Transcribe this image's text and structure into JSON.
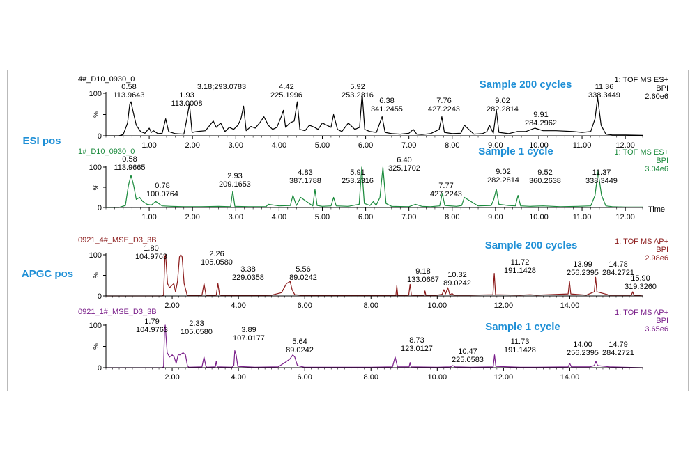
{
  "colors": {
    "esi200": "#000000",
    "esi1": "#1a8a3c",
    "apgc200": "#8b1a1a",
    "apgc1": "#7a1f8a",
    "blue": "#1e8fd6"
  },
  "group_labels": [
    "ESI pos",
    "APGC pos"
  ],
  "panels": [
    {
      "id": "esi200",
      "color_key": "esi200",
      "sample": "D10_0930_0",
      "header": "4#_D10_0930_0",
      "label": "Sample 200 cycles",
      "info1": "1: TOF MS ES+",
      "info2": "BPI",
      "info3": "2.60e6",
      "show_axis": true,
      "xlabel": "",
      "xticks": [
        "1.00",
        "2.00",
        "3.00",
        "4.00",
        "5.00",
        "6.00",
        "7.00",
        "8.00",
        "9.00",
        "10.00",
        "11.00",
        "12.00"
      ],
      "peaks": [
        {
          "rt": "0.58",
          "mz": "113.9643"
        },
        {
          "rt": "1.93",
          "mz": "113.0008"
        },
        {
          "rt": "3.18;293.0783",
          "mz": ""
        },
        {
          "rt": "4.42",
          "mz": "225.1996"
        },
        {
          "rt": "5.92",
          "mz": "253.2316"
        },
        {
          "rt": "6.38",
          "mz": "341.2455"
        },
        {
          "rt": "7.76",
          "mz": "427.2243"
        },
        {
          "rt": "9.02",
          "mz": "282.2814"
        },
        {
          "rt": "9.91",
          "mz": "284.2962"
        },
        {
          "rt": "11.36",
          "mz": "338.3449"
        }
      ]
    },
    {
      "id": "esi1",
      "color_key": "esi1",
      "sample": "D10_0930_0",
      "header": "1#_D10_0930_0",
      "label": "Sample 1 cycle",
      "info1": "1: TOF MS ES+",
      "info2": "BPI",
      "info3": "3.04e6",
      "show_axis": true,
      "xlabel": "Time",
      "xticks": [
        "1.00",
        "2.00",
        "3.00",
        "4.00",
        "5.00",
        "6.00",
        "7.00",
        "8.00",
        "9.00",
        "10.00",
        "11.00",
        "12.00"
      ],
      "peaks": [
        {
          "rt": "0.58",
          "mz": "113.9665"
        },
        {
          "rt": "0.78",
          "mz": "100.0764"
        },
        {
          "rt": "2.93",
          "mz": "209.1653"
        },
        {
          "rt": "4.83",
          "mz": "387.1788"
        },
        {
          "rt": "5.91",
          "mz": "253.2316"
        },
        {
          "rt": "6.40",
          "mz": "325.1702"
        },
        {
          "rt": "7.77",
          "mz": "427.2243"
        },
        {
          "rt": "9.02",
          "mz": "282.2814"
        },
        {
          "rt": "9.52",
          "mz": "360.2638"
        },
        {
          "rt": "11.37",
          "mz": "338.3449"
        }
      ]
    },
    {
      "id": "apgc200",
      "color_key": "apgc200",
      "sample": "MSE_D3_3B",
      "header": "0921_4#_MSE_D3_3B",
      "label": "Sample 200 cycles",
      "info1": "1: TOF MS AP+",
      "info2": "BPI",
      "info3": "2.98e6",
      "show_axis": true,
      "xlabel": "",
      "xticks": [
        "2.00",
        "4.00",
        "6.00",
        "8.00",
        "10.00",
        "12.00",
        "14.00"
      ],
      "peaks": [
        {
          "rt": "1.80",
          "mz": "104.9763"
        },
        {
          "rt": "2.26",
          "mz": "105.0580"
        },
        {
          "rt": "3.38",
          "mz": "229.0358"
        },
        {
          "rt": "5.56",
          "mz": "89.0242"
        },
        {
          "rt": "9.18",
          "mz": "133.0667"
        },
        {
          "rt": "10.32",
          "mz": "89.0242"
        },
        {
          "rt": "11.72",
          "mz": "191.1428"
        },
        {
          "rt": "13.99",
          "mz": "256.2395"
        },
        {
          "rt": "14.78",
          "mz": "284.2721"
        },
        {
          "rt": "15.90",
          "mz": "319.3260"
        }
      ]
    },
    {
      "id": "apgc1",
      "color_key": "apgc1",
      "sample": "MSE_D3_3B",
      "header": "0921_1#_MSE_D3_3B",
      "label": "Sample 1 cycle",
      "info1": "1: TOF MS AP+",
      "info2": "BPI",
      "info3": "3.65e6",
      "show_axis": true,
      "xlabel": "",
      "xticks": [
        "2.00",
        "4.00",
        "6.00",
        "8.00",
        "10.00",
        "12.00",
        "14.00"
      ],
      "peaks": [
        {
          "rt": "1.79",
          "mz": "104.9763"
        },
        {
          "rt": "2.33",
          "mz": "105.0580"
        },
        {
          "rt": "3.89",
          "mz": "107.0177"
        },
        {
          "rt": "5.64",
          "mz": "89.0242"
        },
        {
          "rt": "8.73",
          "mz": "123.0127"
        },
        {
          "rt": "10.47",
          "mz": "225.0583"
        },
        {
          "rt": "11.73",
          "mz": "191.1428"
        },
        {
          "rt": "14.00",
          "mz": "256.2395"
        },
        {
          "rt": "14.79",
          "mz": "284.2721"
        }
      ]
    }
  ],
  "chart_data": [
    {
      "type": "line",
      "title": "4#_D10_0930_0",
      "subtitle": "Sample 200 cycles",
      "xlabel": "",
      "ylabel": "%",
      "xlim": [
        0.0,
        12.4
      ],
      "ylim": [
        0,
        100
      ],
      "yticks": [
        0,
        50,
        100
      ],
      "grid": false,
      "series": [
        {
          "name": "4#_D10_0930_0",
          "x": [
            0.0,
            0.3,
            0.4,
            0.5,
            0.55,
            0.58,
            0.62,
            0.7,
            0.8,
            0.9,
            1.0,
            1.05,
            1.1,
            1.2,
            1.3,
            1.38,
            1.45,
            1.6,
            1.8,
            1.87,
            1.93,
            1.99,
            2.1,
            2.3,
            2.48,
            2.55,
            2.65,
            2.75,
            2.85,
            2.95,
            3.05,
            3.12,
            3.18,
            3.24,
            3.35,
            3.45,
            3.55,
            3.65,
            3.75,
            3.85,
            3.95,
            4.05,
            4.1,
            4.15,
            4.25,
            4.35,
            4.42,
            4.48,
            4.6,
            4.7,
            4.82,
            4.9,
            5.0,
            5.2,
            5.26,
            5.35,
            5.45,
            5.6,
            5.75,
            5.86,
            5.92,
            5.98,
            6.1,
            6.25,
            6.38,
            6.45,
            6.6,
            6.8,
            7.0,
            7.1,
            7.18,
            7.3,
            7.5,
            7.7,
            7.76,
            7.82,
            8.0,
            8.2,
            8.28,
            8.5,
            8.7,
            8.8,
            8.86,
            8.95,
            9.02,
            9.08,
            9.3,
            9.5,
            9.7,
            9.91,
            10.1,
            10.4,
            10.8,
            11.0,
            11.2,
            11.3,
            11.36,
            11.44,
            11.55,
            11.7,
            12.0,
            12.4
          ],
          "y": [
            0,
            0,
            3,
            30,
            75,
            80,
            60,
            25,
            10,
            6,
            18,
            8,
            12,
            5,
            6,
            40,
            10,
            5,
            4,
            40,
            75,
            8,
            10,
            12,
            35,
            20,
            30,
            10,
            20,
            15,
            25,
            40,
            70,
            12,
            22,
            18,
            30,
            45,
            25,
            15,
            20,
            45,
            60,
            20,
            30,
            35,
            80,
            15,
            12,
            25,
            20,
            15,
            30,
            20,
            50,
            15,
            10,
            30,
            15,
            20,
            100,
            15,
            10,
            8,
            45,
            8,
            5,
            4,
            6,
            15,
            4,
            3,
            5,
            15,
            45,
            8,
            5,
            6,
            25,
            4,
            5,
            10,
            25,
            6,
            60,
            8,
            5,
            10,
            10,
            18,
            12,
            12,
            10,
            8,
            10,
            40,
            90,
            25,
            4,
            2,
            2,
            1
          ]
        }
      ],
      "annotations": [
        "0.58 113.9643",
        "1.93 113.0008",
        "3.18;293.0783",
        "4.42 225.1996",
        "5.92 253.2316",
        "6.38 341.2455",
        "7.76 427.2243",
        "9.02 282.2814",
        "9.91 284.2962",
        "11.36 338.3449"
      ]
    },
    {
      "type": "line",
      "title": "1#_D10_0930_0",
      "subtitle": "Sample 1 cycle",
      "xlabel": "Time",
      "ylabel": "%",
      "xlim": [
        0.0,
        12.4
      ],
      "ylim": [
        0,
        100
      ],
      "yticks": [
        0,
        50,
        100
      ],
      "grid": false,
      "series": [
        {
          "name": "1#_D10_0930_0",
          "x": [
            0.0,
            0.3,
            0.45,
            0.52,
            0.58,
            0.64,
            0.7,
            0.78,
            0.85,
            0.95,
            1.05,
            1.15,
            1.3,
            1.5,
            1.8,
            2.2,
            2.6,
            2.88,
            2.93,
            2.98,
            3.3,
            3.7,
            3.75,
            4.0,
            4.26,
            4.32,
            4.4,
            4.5,
            4.78,
            4.83,
            4.88,
            5.0,
            5.2,
            5.26,
            5.32,
            5.6,
            5.85,
            5.91,
            5.97,
            6.1,
            6.18,
            6.24,
            6.33,
            6.4,
            6.47,
            6.6,
            7.0,
            7.15,
            7.3,
            7.5,
            7.71,
            7.77,
            7.83,
            8.1,
            8.22,
            8.28,
            8.6,
            8.9,
            8.96,
            9.02,
            9.08,
            9.3,
            9.46,
            9.52,
            9.58,
            9.8,
            10.1,
            10.5,
            10.9,
            11.2,
            11.3,
            11.37,
            11.45,
            11.55,
            11.7,
            12.0,
            12.4
          ],
          "y": [
            0,
            0,
            5,
            55,
            80,
            55,
            20,
            25,
            15,
            8,
            6,
            15,
            4,
            3,
            2,
            2,
            3,
            2,
            40,
            3,
            2,
            2,
            8,
            4,
            5,
            30,
            5,
            25,
            4,
            45,
            5,
            3,
            4,
            25,
            4,
            3,
            8,
            100,
            10,
            5,
            15,
            5,
            25,
            100,
            10,
            3,
            2,
            8,
            3,
            2,
            4,
            35,
            5,
            3,
            5,
            25,
            4,
            5,
            20,
            45,
            8,
            5,
            4,
            30,
            4,
            3,
            4,
            2,
            3,
            4,
            30,
            90,
            30,
            4,
            2,
            1,
            1
          ]
        }
      ],
      "annotations": [
        "0.58 113.9665",
        "0.78 100.0764",
        "2.93 209.1653",
        "4.83 387.1788",
        "5.91 253.2316",
        "6.40 325.1702",
        "7.77 427.2243",
        "9.02 282.2814",
        "9.52 360.2638",
        "11.37 338.3449"
      ]
    },
    {
      "type": "line",
      "title": "0921_4#_MSE_D3_3B",
      "subtitle": "Sample 200 cycles",
      "xlabel": "",
      "ylabel": "%",
      "xlim": [
        0.0,
        16.2
      ],
      "ylim": [
        0,
        100
      ],
      "yticks": [
        0,
        50,
        100
      ],
      "grid": false,
      "series": [
        {
          "name": "0921_4#_MSE_D3_3B",
          "x": [
            0.0,
            1.7,
            1.74,
            1.78,
            1.8,
            1.86,
            1.92,
            1.98,
            2.05,
            2.1,
            2.16,
            2.22,
            2.26,
            2.3,
            2.36,
            2.45,
            2.5,
            2.9,
            2.96,
            3.02,
            3.05,
            3.33,
            3.38,
            3.43,
            3.5,
            4.0,
            5.0,
            5.3,
            5.45,
            5.56,
            5.62,
            5.7,
            6.0,
            7.0,
            8.0,
            8.75,
            8.78,
            8.81,
            9.14,
            9.18,
            9.22,
            9.6,
            9.63,
            9.66,
            10.0,
            10.15,
            10.2,
            10.25,
            10.32,
            10.38,
            10.45,
            10.5,
            11.0,
            11.68,
            11.72,
            11.76,
            12.5,
            12.8,
            13.0,
            13.95,
            13.99,
            14.03,
            14.5,
            14.74,
            14.78,
            14.82,
            15.2,
            15.86,
            15.9,
            15.94,
            16.2
          ],
          "y": [
            0,
            0,
            2,
            95,
            100,
            30,
            20,
            25,
            30,
            10,
            35,
            95,
            100,
            95,
            30,
            2,
            1,
            2,
            30,
            3,
            1,
            2,
            30,
            3,
            1,
            1,
            2,
            8,
            30,
            35,
            15,
            3,
            1,
            1,
            1,
            1,
            25,
            1,
            2,
            28,
            2,
            1,
            12,
            1,
            2,
            4,
            15,
            5,
            20,
            3,
            6,
            2,
            2,
            3,
            55,
            3,
            2,
            3,
            2,
            5,
            35,
            5,
            2,
            10,
            45,
            10,
            2,
            2,
            10,
            2,
            0
          ]
        }
      ],
      "annotations": [
        "1.80 104.9763",
        "2.26 105.0580",
        "3.38 229.0358",
        "5.56 89.0242",
        "9.18 133.0667",
        "10.32 89.0242",
        "11.72 191.1428",
        "13.99 256.2395",
        "14.78 284.2721",
        "15.90 319.3260"
      ]
    },
    {
      "type": "line",
      "title": "0921_1#_MSE_D3_3B",
      "subtitle": "Sample 1 cycle",
      "xlabel": "",
      "ylabel": "%",
      "xlim": [
        0.0,
        16.2
      ],
      "ylim": [
        0,
        100
      ],
      "yticks": [
        0,
        50,
        100
      ],
      "grid": false,
      "series": [
        {
          "name": "0921_1#_MSE_D3_3B",
          "x": [
            0.0,
            1.7,
            1.74,
            1.77,
            1.79,
            1.85,
            1.92,
            2.0,
            2.06,
            2.12,
            2.18,
            2.24,
            2.33,
            2.4,
            2.46,
            2.5,
            2.9,
            2.96,
            3.02,
            3.05,
            3.3,
            3.33,
            3.36,
            3.8,
            3.86,
            3.89,
            3.93,
            3.98,
            4.5,
            5.2,
            5.4,
            5.55,
            5.64,
            5.7,
            5.78,
            6.0,
            7.0,
            8.0,
            8.65,
            8.73,
            8.8,
            9.15,
            9.18,
            9.21,
            10.0,
            10.4,
            10.47,
            10.54,
            11.0,
            11.69,
            11.73,
            11.77,
            12.5,
            13.0,
            13.95,
            14.0,
            14.05,
            14.6,
            14.74,
            14.79,
            14.84,
            15.2,
            16.2
          ],
          "y": [
            0,
            0,
            2,
            90,
            100,
            35,
            25,
            30,
            25,
            10,
            30,
            30,
            35,
            30,
            5,
            1,
            2,
            25,
            3,
            1,
            2,
            15,
            2,
            1,
            5,
            40,
            30,
            3,
            1,
            2,
            12,
            20,
            30,
            25,
            5,
            1,
            1,
            1,
            2,
            25,
            2,
            2,
            12,
            2,
            1,
            2,
            5,
            2,
            1,
            2,
            30,
            3,
            1,
            1,
            2,
            10,
            2,
            2,
            5,
            15,
            5,
            2,
            0
          ]
        }
      ],
      "annotations": [
        "1.79 104.9763",
        "2.33 105.0580",
        "3.89 107.0177",
        "5.64 89.0242",
        "8.73 123.0127",
        "10.47 225.0583",
        "11.73 191.1428",
        "14.00 256.2395",
        "14.79 284.2721"
      ]
    }
  ]
}
